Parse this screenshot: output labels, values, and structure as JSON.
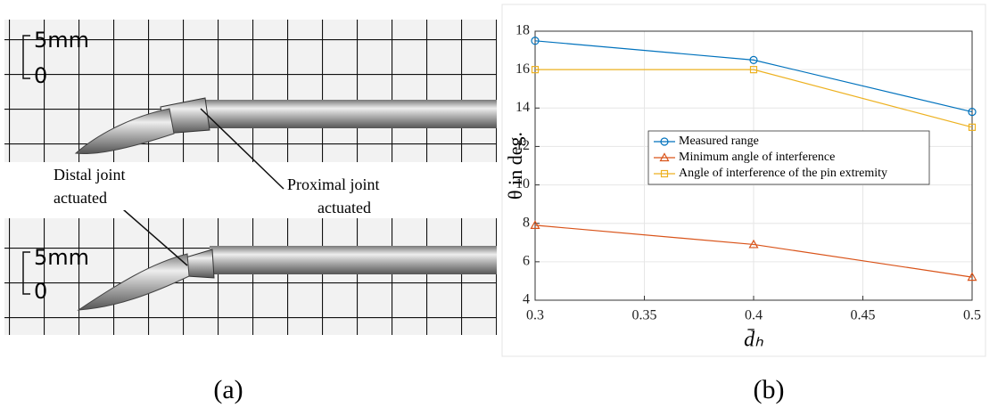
{
  "panel_a": {
    "photos": [
      {
        "scale_top": "5mm",
        "scale_bottom": "0"
      },
      {
        "scale_top": "5mm",
        "scale_bottom": "0"
      }
    ],
    "annotations": [
      {
        "lines": [
          "Distal joint",
          "actuated"
        ]
      },
      {
        "lines": [
          "Proximal joint",
          "actuated"
        ]
      }
    ]
  },
  "captions": [
    "(a)",
    "(b)"
  ],
  "chart_data": {
    "type": "line",
    "x_label": "d̄ₕ",
    "y_label": "θ in deg.",
    "x": [
      0.3,
      0.4,
      0.5
    ],
    "series": [
      {
        "name": "Measured range",
        "color": "#0072bd",
        "marker": "circle",
        "values": [
          17.5,
          16.5,
          13.8
        ]
      },
      {
        "name": "Minimum angle of interference",
        "color": "#d95319",
        "marker": "triangle",
        "values": [
          7.9,
          6.9,
          5.2
        ]
      },
      {
        "name": "Angle of interference of the pin extremity",
        "color": "#edb120",
        "marker": "square",
        "values": [
          16,
          16,
          13
        ]
      }
    ],
    "xlim": [
      0.3,
      0.5
    ],
    "xticks": [
      0.3,
      0.35,
      0.4,
      0.45,
      0.5
    ],
    "ylim": [
      4,
      18
    ],
    "yticks": [
      4,
      6,
      8,
      10,
      12,
      14,
      16,
      18
    ],
    "grid": true,
    "legend": "center"
  }
}
